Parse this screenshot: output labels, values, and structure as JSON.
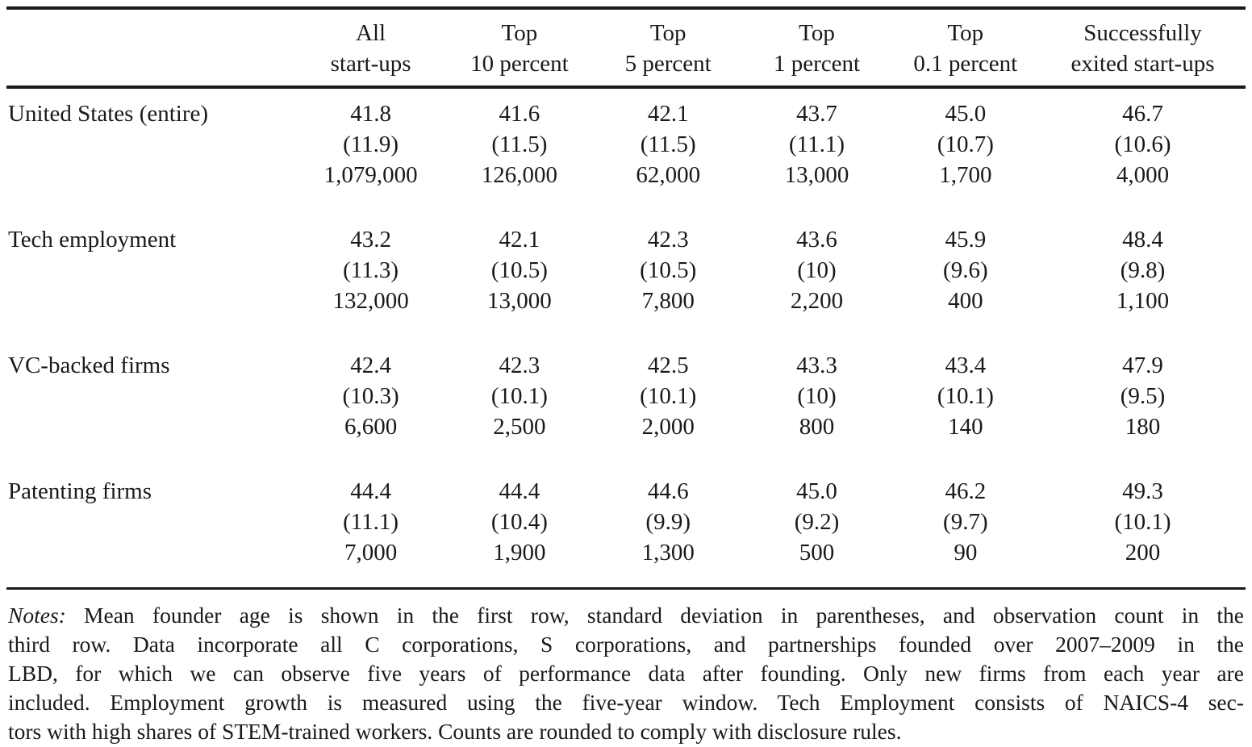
{
  "table": {
    "columns": [
      {
        "line1": "All",
        "line2": "start-ups"
      },
      {
        "line1": "Top",
        "line2": "10 percent"
      },
      {
        "line1": "Top",
        "line2": "5 percent"
      },
      {
        "line1": "Top",
        "line2": "1 percent"
      },
      {
        "line1": "Top",
        "line2": "0.1 percent"
      },
      {
        "line1": "Successfully",
        "line2": "exited start-ups"
      }
    ],
    "groups": [
      {
        "label": "United States (entire)",
        "mean": [
          "41.8",
          "41.6",
          "42.1",
          "43.7",
          "45.0",
          "46.7"
        ],
        "sd": [
          "(11.9)",
          "(11.5)",
          "(11.5)",
          "(11.1)",
          "(10.7)",
          "(10.6)"
        ],
        "count": [
          "1,079,000",
          "126,000",
          "62,000",
          "13,000",
          "1,700",
          "4,000"
        ]
      },
      {
        "label": "Tech employment",
        "mean": [
          "43.2",
          "42.1",
          "42.3",
          "43.6",
          "45.9",
          "48.4"
        ],
        "sd": [
          "(11.3)",
          "(10.5)",
          "(10.5)",
          "(10)",
          "(9.6)",
          "(9.8)"
        ],
        "count": [
          "132,000",
          "13,000",
          "7,800",
          "2,200",
          "400",
          "1,100"
        ]
      },
      {
        "label": "VC-backed firms",
        "mean": [
          "42.4",
          "42.3",
          "42.5",
          "43.3",
          "43.4",
          "47.9"
        ],
        "sd": [
          "(10.3)",
          "(10.1)",
          "(10.1)",
          "(10)",
          "(10.1)",
          "(9.5)"
        ],
        "count": [
          "6,600",
          "2,500",
          "2,000",
          "800",
          "140",
          "180"
        ]
      },
      {
        "label": "Patenting firms",
        "mean": [
          "44.4",
          "44.4",
          "44.6",
          "45.0",
          "46.2",
          "49.3"
        ],
        "sd": [
          "(11.1)",
          "(10.4)",
          "(9.9)",
          "(9.2)",
          "(9.7)",
          "(10.1)"
        ],
        "count": [
          "7,000",
          "1,900",
          "1,300",
          "500",
          "90",
          "200"
        ]
      }
    ]
  },
  "notes": {
    "label": "Notes:",
    "lines": [
      " Mean founder age is shown in the first row, standard deviation in parentheses, and observation count in the",
      "third row. Data incorporate all C corporations, S corporations, and partnerships founded over 2007–2009 in the",
      "LBD, for which we can observe five years of performance data after founding. Only new firms from each year are",
      "included. Employment growth is measured using the five-year window. Tech Employment consists of NAICS-4 sec-",
      "tors with high shares of STEM-trained workers. Counts are rounded to comply with disclosure rules."
    ]
  },
  "colors": {
    "text": "#1a1a1a",
    "rule": "#1a1a1a",
    "background": "#ffffff"
  }
}
